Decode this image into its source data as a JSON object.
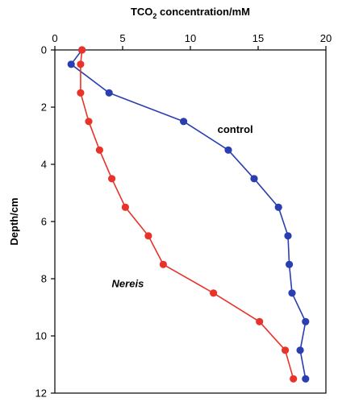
{
  "chart_data": {
    "type": "line",
    "title_main": "TCO",
    "title_sub": "2",
    "title_rest": " concentration/mM",
    "ylabel": "Depth/cm",
    "xlim": [
      0,
      20
    ],
    "ylim": [
      0,
      12
    ],
    "y_inverted": true,
    "x_axis_position": "top",
    "x_ticks": [
      0,
      5,
      10,
      15,
      20
    ],
    "y_ticks": [
      0,
      2,
      4,
      6,
      8,
      10,
      12
    ],
    "grid": false,
    "series": [
      {
        "name": "control",
        "color": "#2a3eb1",
        "x": [
          2.0,
          1.2,
          4.0,
          9.5,
          12.8,
          14.7,
          16.5,
          17.2,
          17.3,
          17.5,
          18.5,
          18.1,
          18.5
        ],
        "y": [
          0.0,
          0.5,
          1.5,
          2.5,
          3.5,
          4.5,
          5.5,
          6.5,
          7.5,
          8.5,
          9.5,
          10.5,
          11.5
        ]
      },
      {
        "name": "Nereis",
        "color": "#e8332a",
        "x": [
          2.0,
          1.9,
          1.9,
          2.5,
          3.3,
          4.2,
          5.2,
          6.9,
          8.0,
          11.7,
          15.1,
          17.0,
          17.6
        ],
        "y": [
          0.0,
          0.5,
          1.5,
          2.5,
          3.5,
          4.5,
          5.5,
          6.5,
          7.5,
          8.5,
          9.5,
          10.5,
          11.5
        ]
      }
    ]
  }
}
